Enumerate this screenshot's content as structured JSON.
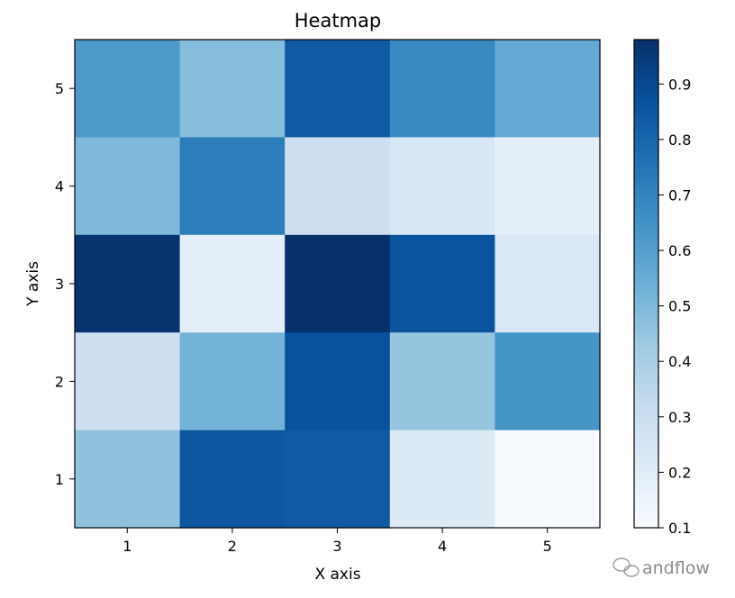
{
  "chart_data": {
    "type": "heatmap",
    "title": "Heatmap",
    "xlabel": "X axis",
    "ylabel": "Y axis",
    "x_ticks": [
      "1",
      "2",
      "3",
      "4",
      "5"
    ],
    "y_ticks": [
      "1",
      "2",
      "3",
      "4",
      "5"
    ],
    "colormap": "Blues",
    "values_by_row": [
      {
        "y": "5",
        "values": [
          0.62,
          0.48,
          0.84,
          0.68,
          0.56
        ]
      },
      {
        "y": "4",
        "values": [
          0.5,
          0.72,
          0.29,
          0.24,
          0.18
        ]
      },
      {
        "y": "3",
        "values": [
          0.97,
          0.19,
          0.98,
          0.86,
          0.23
        ]
      },
      {
        "y": "2",
        "values": [
          0.29,
          0.52,
          0.87,
          0.45,
          0.64
        ]
      },
      {
        "y": "1",
        "values": [
          0.46,
          0.85,
          0.84,
          0.22,
          0.1
        ]
      }
    ],
    "colorbar": {
      "range": [
        0.1,
        0.98
      ],
      "ticks": [
        0.1,
        0.2,
        0.3,
        0.4,
        0.5,
        0.6,
        0.7,
        0.8,
        0.9
      ],
      "tick_labels": [
        "0.1",
        "0.2",
        "0.3",
        "0.4",
        "0.5",
        "0.6",
        "0.7",
        "0.8",
        "0.9"
      ]
    }
  },
  "watermark": {
    "text": "andflow",
    "icon": "wechat-icon",
    "color": "#8a8a8a"
  }
}
